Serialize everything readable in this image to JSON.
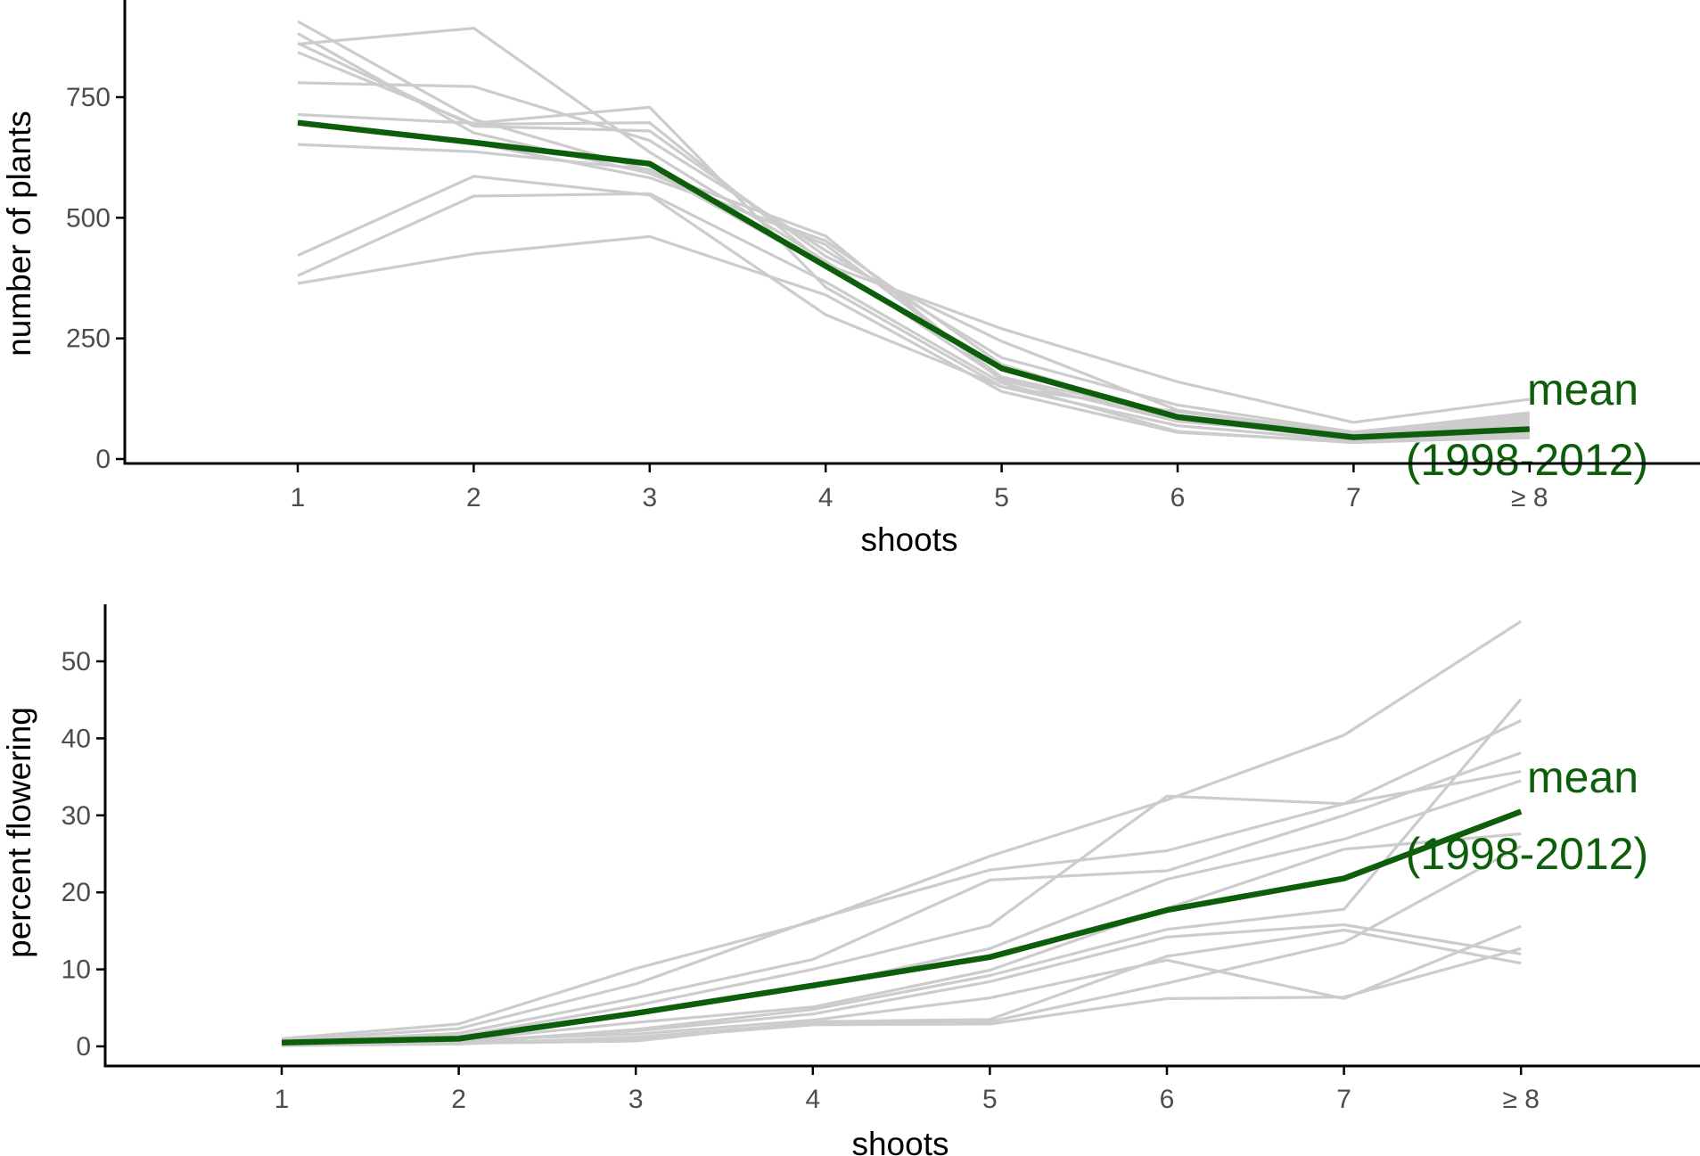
{
  "colors": {
    "mean_line": "#0d5e0a",
    "year_lines": "#cccccc",
    "axis": "#000000",
    "tick_text": "#4d4d4d",
    "background": "#ffffff"
  },
  "chart_data": [
    {
      "type": "line",
      "title": "",
      "xlabel": "shoots",
      "ylabel": "number of plants",
      "categories": [
        "1",
        "2",
        "3",
        "4",
        "5",
        "6",
        "7",
        "≥ 8"
      ],
      "yticks": [
        0,
        250,
        500,
        750
      ],
      "ylim": [
        -10,
        920
      ],
      "grid": false,
      "legend": "none",
      "mean_label": [
        "mean",
        "(1998-2012)"
      ],
      "mean": {
        "values": [
          697,
          656,
          612,
          400,
          188,
          87,
          45,
          62
        ]
      },
      "years": [
        {
          "values": [
            697,
            655,
            583,
            452,
            196,
            84,
            50,
            72
          ]
        },
        {
          "values": [
            860,
            893,
            636,
            410,
            166,
            78,
            48,
            82
          ]
        },
        {
          "values": [
            907,
            704,
            598,
            462,
            163,
            82,
            47,
            76
          ]
        },
        {
          "values": [
            882,
            676,
            592,
            444,
            170,
            90,
            45,
            64
          ]
        },
        {
          "values": [
            862,
            690,
            680,
            420,
            244,
            101,
            54,
            96
          ]
        },
        {
          "values": [
            843,
            694,
            697,
            403,
            270,
            160,
            76,
            124
          ]
        },
        {
          "values": [
            780,
            772,
            660,
            432,
            210,
            112,
            56,
            92
          ]
        },
        {
          "values": [
            714,
            696,
            729,
            356,
            150,
            98,
            50,
            86
          ]
        },
        {
          "values": [
            652,
            637,
            600,
            398,
            185,
            82,
            41,
            57
          ]
        },
        {
          "values": [
            422,
            586,
            547,
            299,
            150,
            69,
            38,
            51
          ]
        },
        {
          "values": [
            380,
            545,
            550,
            367,
            158,
            57,
            34,
            46
          ]
        },
        {
          "values": [
            364,
            425,
            461,
            340,
            140,
            55,
            36,
            44
          ]
        }
      ]
    },
    {
      "type": "line",
      "title": "",
      "xlabel": "shoots",
      "ylabel": "percent flowering",
      "categories": [
        "1",
        "2",
        "3",
        "4",
        "5",
        "6",
        "7",
        "≥ 8"
      ],
      "yticks": [
        0,
        10,
        20,
        30,
        40,
        50
      ],
      "ylim": [
        -2.5,
        58
      ],
      "grid": false,
      "legend": "none",
      "mean_label": [
        "mean",
        "(1998-2012)"
      ],
      "mean": {
        "values": [
          0.5,
          1.0,
          4.3,
          7.9,
          11.6,
          17.7,
          21.8,
          30.5
        ]
      },
      "years": [
        {
          "values": [
            1.0,
            2.9,
            10.1,
            16.2,
            24.7,
            32.0,
            40.4,
            55.2
          ]
        },
        {
          "values": [
            0.8,
            2.3,
            8.1,
            16.4,
            22.9,
            25.4,
            31.5,
            42.3
          ]
        },
        {
          "values": [
            0.6,
            1.7,
            6.3,
            11.3,
            21.6,
            22.8,
            30.0,
            38.1
          ]
        },
        {
          "values": [
            0.5,
            1.3,
            5.3,
            10.0,
            15.7,
            32.5,
            31.5,
            35.7
          ]
        },
        {
          "values": [
            0.3,
            0.9,
            4.5,
            7.7,
            12.7,
            21.7,
            26.9,
            34.5
          ]
        },
        {
          "values": [
            0.2,
            0.8,
            3.1,
            5.1,
            9.9,
            17.9,
            25.6,
            27.6
          ]
        },
        {
          "values": [
            0.1,
            0.4,
            2.2,
            4.8,
            9.2,
            15.2,
            17.8,
            45.1
          ]
        },
        {
          "values": [
            0.2,
            0.6,
            2.0,
            4.2,
            8.4,
            14.2,
            15.8,
            12.0
          ]
        },
        {
          "values": [
            0.3,
            0.8,
            1.6,
            3.4,
            6.3,
            11.2,
            6.2,
            15.6
          ]
        },
        {
          "values": [
            0.1,
            0.3,
            1.2,
            3.0,
            3.2,
            8.2,
            13.5,
            26.0
          ]
        },
        {
          "values": [
            0.2,
            0.5,
            1.0,
            2.8,
            2.9,
            6.2,
            6.4,
            12.7
          ]
        },
        {
          "values": [
            0.3,
            0.4,
            0.7,
            3.2,
            3.5,
            11.7,
            15.1,
            10.8
          ]
        }
      ]
    }
  ]
}
